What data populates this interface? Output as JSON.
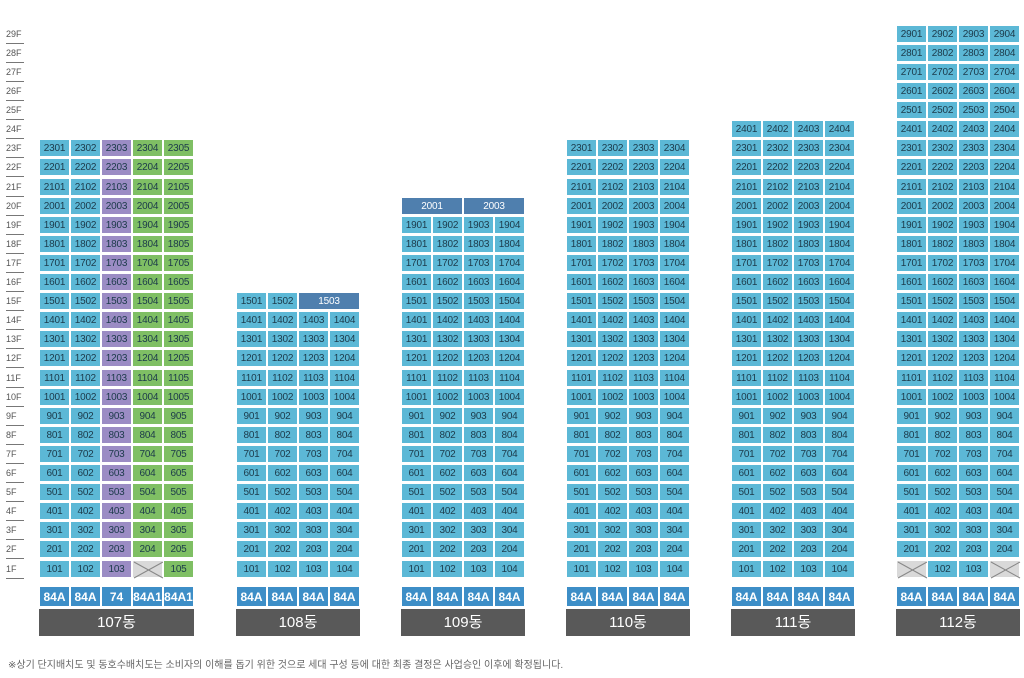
{
  "floors": [
    "1F",
    "2F",
    "3F",
    "4F",
    "5F",
    "6F",
    "7F",
    "8F",
    "9F",
    "10F",
    "11F",
    "12F",
    "13F",
    "14F",
    "15F",
    "16F",
    "17F",
    "18F",
    "19F",
    "20F",
    "21F",
    "22F",
    "23F",
    "24F",
    "25F",
    "26F",
    "27F",
    "28F",
    "29F"
  ],
  "colors": {
    "blue": "#5cb8d6",
    "green": "#7fbf64",
    "purple": "#9b8cc4",
    "dark": "#4f7fae",
    "empty": "#d9d9d9",
    "type": "#3d8ec7",
    "label": "#595959"
  },
  "buildings": [
    {
      "name": "107동",
      "lines": 5,
      "floors": 23,
      "types": [
        "84A",
        "84A",
        "74",
        "84A1",
        "84A1"
      ],
      "line_colors": [
        "blue",
        "blue",
        "purple",
        "green",
        "green"
      ],
      "empty_units": [
        "104"
      ],
      "top_merged": []
    },
    {
      "name": "108동",
      "lines": 4,
      "floors": 15,
      "types": [
        "84A",
        "84A",
        "84A",
        "84A"
      ],
      "line_colors": [
        "blue",
        "blue",
        "blue",
        "blue"
      ],
      "empty_units": [],
      "top_merged": [
        {
          "floor": 15,
          "units": [
            {
              "label": "1501",
              "span": 1,
              "dark": false
            },
            {
              "label": "1502",
              "span": 1,
              "dark": false
            },
            {
              "label": "1503",
              "span": 2,
              "dark": true
            }
          ]
        }
      ]
    },
    {
      "name": "109동",
      "lines": 4,
      "floors": 20,
      "types": [
        "84A",
        "84A",
        "84A",
        "84A"
      ],
      "line_colors": [
        "blue",
        "blue",
        "blue",
        "blue"
      ],
      "empty_units": [],
      "top_merged": [
        {
          "floor": 20,
          "units": [
            {
              "label": "2001",
              "span": 2,
              "dark": true
            },
            {
              "label": "2003",
              "span": 2,
              "dark": true
            }
          ]
        }
      ]
    },
    {
      "name": "110동",
      "lines": 4,
      "floors": 23,
      "types": [
        "84A",
        "84A",
        "84A",
        "84A"
      ],
      "line_colors": [
        "blue",
        "blue",
        "blue",
        "blue"
      ],
      "empty_units": [],
      "top_merged": []
    },
    {
      "name": "111동",
      "lines": 4,
      "floors": 24,
      "types": [
        "84A",
        "84A",
        "84A",
        "84A"
      ],
      "line_colors": [
        "blue",
        "blue",
        "blue",
        "blue"
      ],
      "empty_units": [],
      "top_merged": []
    },
    {
      "name": "112동",
      "lines": 4,
      "floors": 29,
      "types": [
        "84A",
        "84A",
        "84A",
        "84A"
      ],
      "line_colors": [
        "blue",
        "blue",
        "blue",
        "blue"
      ],
      "empty_units": [
        "101",
        "104"
      ],
      "top_merged": []
    }
  ],
  "footnote": "※상기 단지배치도 및 동호수배치도는 소비자의 이해를 돕기 위한 것으로 세대 구성 등에 대한 최종 결정은 사업승인 이후에 확정됩니다."
}
